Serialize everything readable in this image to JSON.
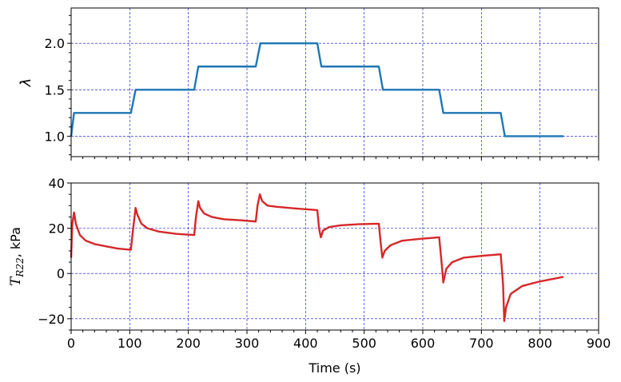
{
  "chart_data": [
    {
      "type": "line",
      "ylabel": "λ",
      "xlim": [
        0,
        900
      ],
      "ylim": [
        0.78,
        2.38
      ],
      "xticks": [
        0,
        100,
        200,
        300,
        400,
        500,
        600,
        700,
        800,
        900
      ],
      "yticks": [
        1.0,
        1.5,
        2.0
      ],
      "ytick_labels": [
        "1.0",
        "1.5",
        "2.0"
      ],
      "grid": true,
      "series": [
        {
          "color": "#1f77b4",
          "x": [
            0,
            5,
            102,
            110,
            210,
            217,
            315,
            323,
            420,
            427,
            525,
            532,
            628,
            635,
            733,
            740,
            840
          ],
          "y": [
            1.0,
            1.25,
            1.25,
            1.5,
            1.5,
            1.75,
            1.75,
            2.0,
            2.0,
            1.75,
            1.75,
            1.5,
            1.5,
            1.25,
            1.25,
            1.0,
            1.0
          ]
        }
      ]
    },
    {
      "type": "line",
      "ylabel": "T_R22, kPa",
      "xlabel": "Time (s)",
      "xlim": [
        0,
        900
      ],
      "ylim": [
        -25,
        40
      ],
      "xticks": [
        0,
        100,
        200,
        300,
        400,
        500,
        600,
        700,
        800,
        900
      ],
      "xtick_labels": [
        "0",
        "100",
        "200",
        "300",
        "400",
        "500",
        "600",
        "700",
        "800",
        "900"
      ],
      "yticks": [
        -20,
        0,
        20,
        40
      ],
      "ytick_labels": [
        "−20",
        "0",
        "20",
        "40"
      ],
      "grid": true,
      "series": [
        {
          "color": "#d62728",
          "x": [
            0,
            2,
            5,
            8,
            15,
            25,
            40,
            60,
            80,
            102,
            105,
            110,
            113,
            120,
            130,
            150,
            180,
            210,
            213,
            217,
            220,
            227,
            240,
            260,
            290,
            315,
            318,
            322,
            326,
            335,
            350,
            380,
            420,
            423,
            426,
            430,
            440,
            460,
            490,
            525,
            528,
            531,
            535,
            545,
            565,
            595,
            628,
            632,
            635,
            640,
            650,
            670,
            700,
            733,
            737,
            739,
            742,
            750,
            770,
            800,
            840
          ],
          "y": [
            7,
            22,
            27,
            22,
            17,
            14.5,
            13,
            12,
            11,
            10.5,
            18,
            29,
            26,
            22,
            20,
            18.5,
            17.5,
            17,
            25,
            32,
            29,
            26.5,
            25,
            24,
            23.5,
            23,
            30,
            35,
            32,
            30,
            29.5,
            28.8,
            28,
            20,
            16,
            19,
            20.5,
            21.3,
            21.8,
            22,
            14,
            7,
            10,
            12.5,
            14.5,
            15.3,
            16,
            5,
            -4,
            2,
            5,
            7,
            7.8,
            8.5,
            -5,
            -21,
            -15,
            -9,
            -5.5,
            -3.5,
            -1.5
          ]
        }
      ]
    }
  ]
}
